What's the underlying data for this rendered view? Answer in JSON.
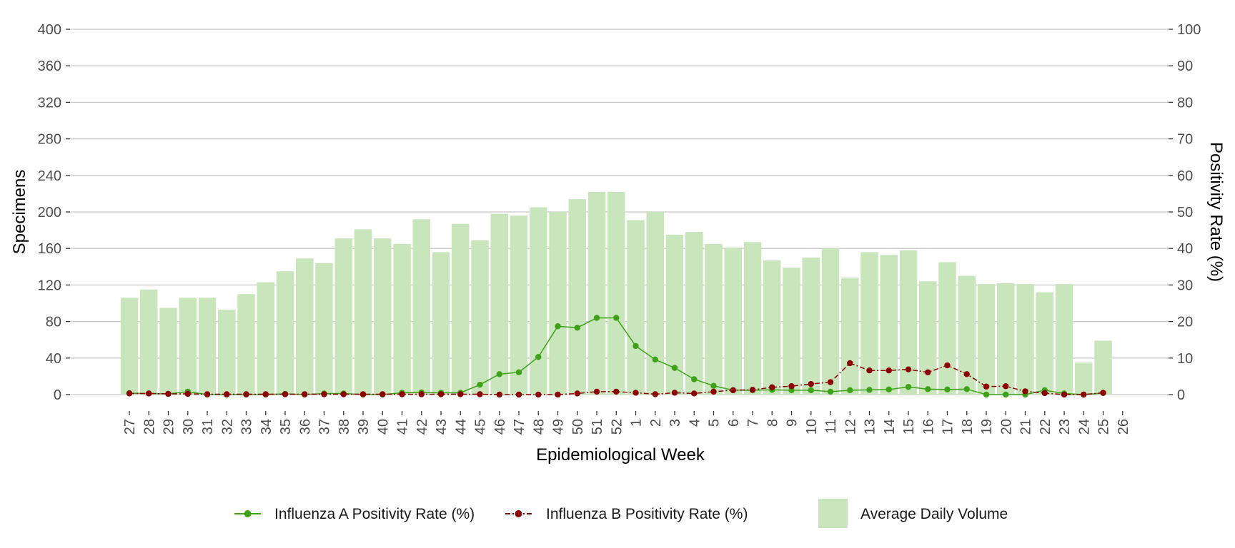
{
  "chart_data": {
    "type": "bar",
    "xlabel": "Epidemiological Week",
    "ylabel": "Specimens",
    "y2label": "Positivity Rate (%)",
    "ylim": [
      0,
      400
    ],
    "y2lim": [
      0,
      100
    ],
    "yticks": [
      "0",
      "40",
      "80",
      "120",
      "160",
      "200",
      "240",
      "280",
      "320",
      "360",
      "400"
    ],
    "y2ticks": [
      "0",
      "10",
      "20",
      "30",
      "40",
      "50",
      "60",
      "70",
      "80",
      "90",
      "100"
    ],
    "grid": true,
    "legend_position": "bottom",
    "categories": [
      "27",
      "28",
      "29",
      "30",
      "31",
      "32",
      "33",
      "34",
      "35",
      "36",
      "37",
      "38",
      "39",
      "40",
      "41",
      "42",
      "43",
      "44",
      "45",
      "46",
      "47",
      "48",
      "49",
      "50",
      "51",
      "52",
      "1",
      "2",
      "3",
      "4",
      "5",
      "6",
      "7",
      "8",
      "9",
      "10",
      "11",
      "12",
      "13",
      "14",
      "15",
      "16",
      "17",
      "18",
      "19",
      "20",
      "21",
      "22",
      "23",
      "24",
      "25",
      "26"
    ],
    "series": [
      {
        "name": "Average Daily Volume",
        "kind": "bar",
        "axis": "left",
        "color": "#c8e5bc",
        "values": [
          106,
          115,
          95,
          106,
          106,
          93,
          110,
          123,
          135,
          149,
          144,
          171,
          181,
          171,
          165,
          192,
          156,
          187,
          169,
          198,
          196,
          205,
          200,
          214,
          222,
          222,
          191,
          200,
          175,
          178,
          165,
          161,
          167,
          147,
          139,
          150,
          160,
          128,
          156,
          153,
          158,
          124,
          145,
          130,
          121,
          122,
          121,
          112,
          121,
          35,
          59,
          null
        ]
      },
      {
        "name": "Influenza A Positivity Rate (%)",
        "kind": "line",
        "axis": "right",
        "color": "#3ea218",
        "values": [
          0.4,
          0.3,
          0.2,
          0.8,
          0,
          0,
          0,
          0,
          0.2,
          0,
          0.3,
          0.3,
          0,
          0,
          0.5,
          0.6,
          0.5,
          0.5,
          2.7,
          5.6,
          6.1,
          10.3,
          18.7,
          18.3,
          21,
          21,
          13.3,
          9.6,
          7.3,
          4.2,
          2.4,
          1.2,
          1.2,
          1.3,
          1.2,
          1.2,
          0.8,
          1.2,
          1.3,
          1.4,
          2.1,
          1.5,
          1.4,
          1.5,
          0,
          0,
          0,
          1.2,
          0.3,
          0,
          0.4,
          null
        ]
      },
      {
        "name": "Influenza B Positivity Rate (%)",
        "kind": "line",
        "axis": "right",
        "color": "#8b0000",
        "values": [
          0.3,
          0.3,
          0.2,
          0.2,
          0.1,
          0.1,
          0.1,
          0.1,
          0.1,
          0.1,
          0.1,
          0.1,
          0.1,
          0.1,
          0.1,
          0.1,
          0.1,
          0.1,
          0.1,
          0,
          0,
          0,
          0,
          0.3,
          0.8,
          0.8,
          0.5,
          0.1,
          0.5,
          0.3,
          0.8,
          1.2,
          1.3,
          2,
          2.3,
          2.9,
          3.4,
          8.6,
          6.6,
          6.6,
          6.9,
          6.1,
          8,
          5.6,
          2.2,
          2.3,
          0.9,
          0.4,
          0,
          0,
          0.5,
          null
        ]
      }
    ]
  }
}
